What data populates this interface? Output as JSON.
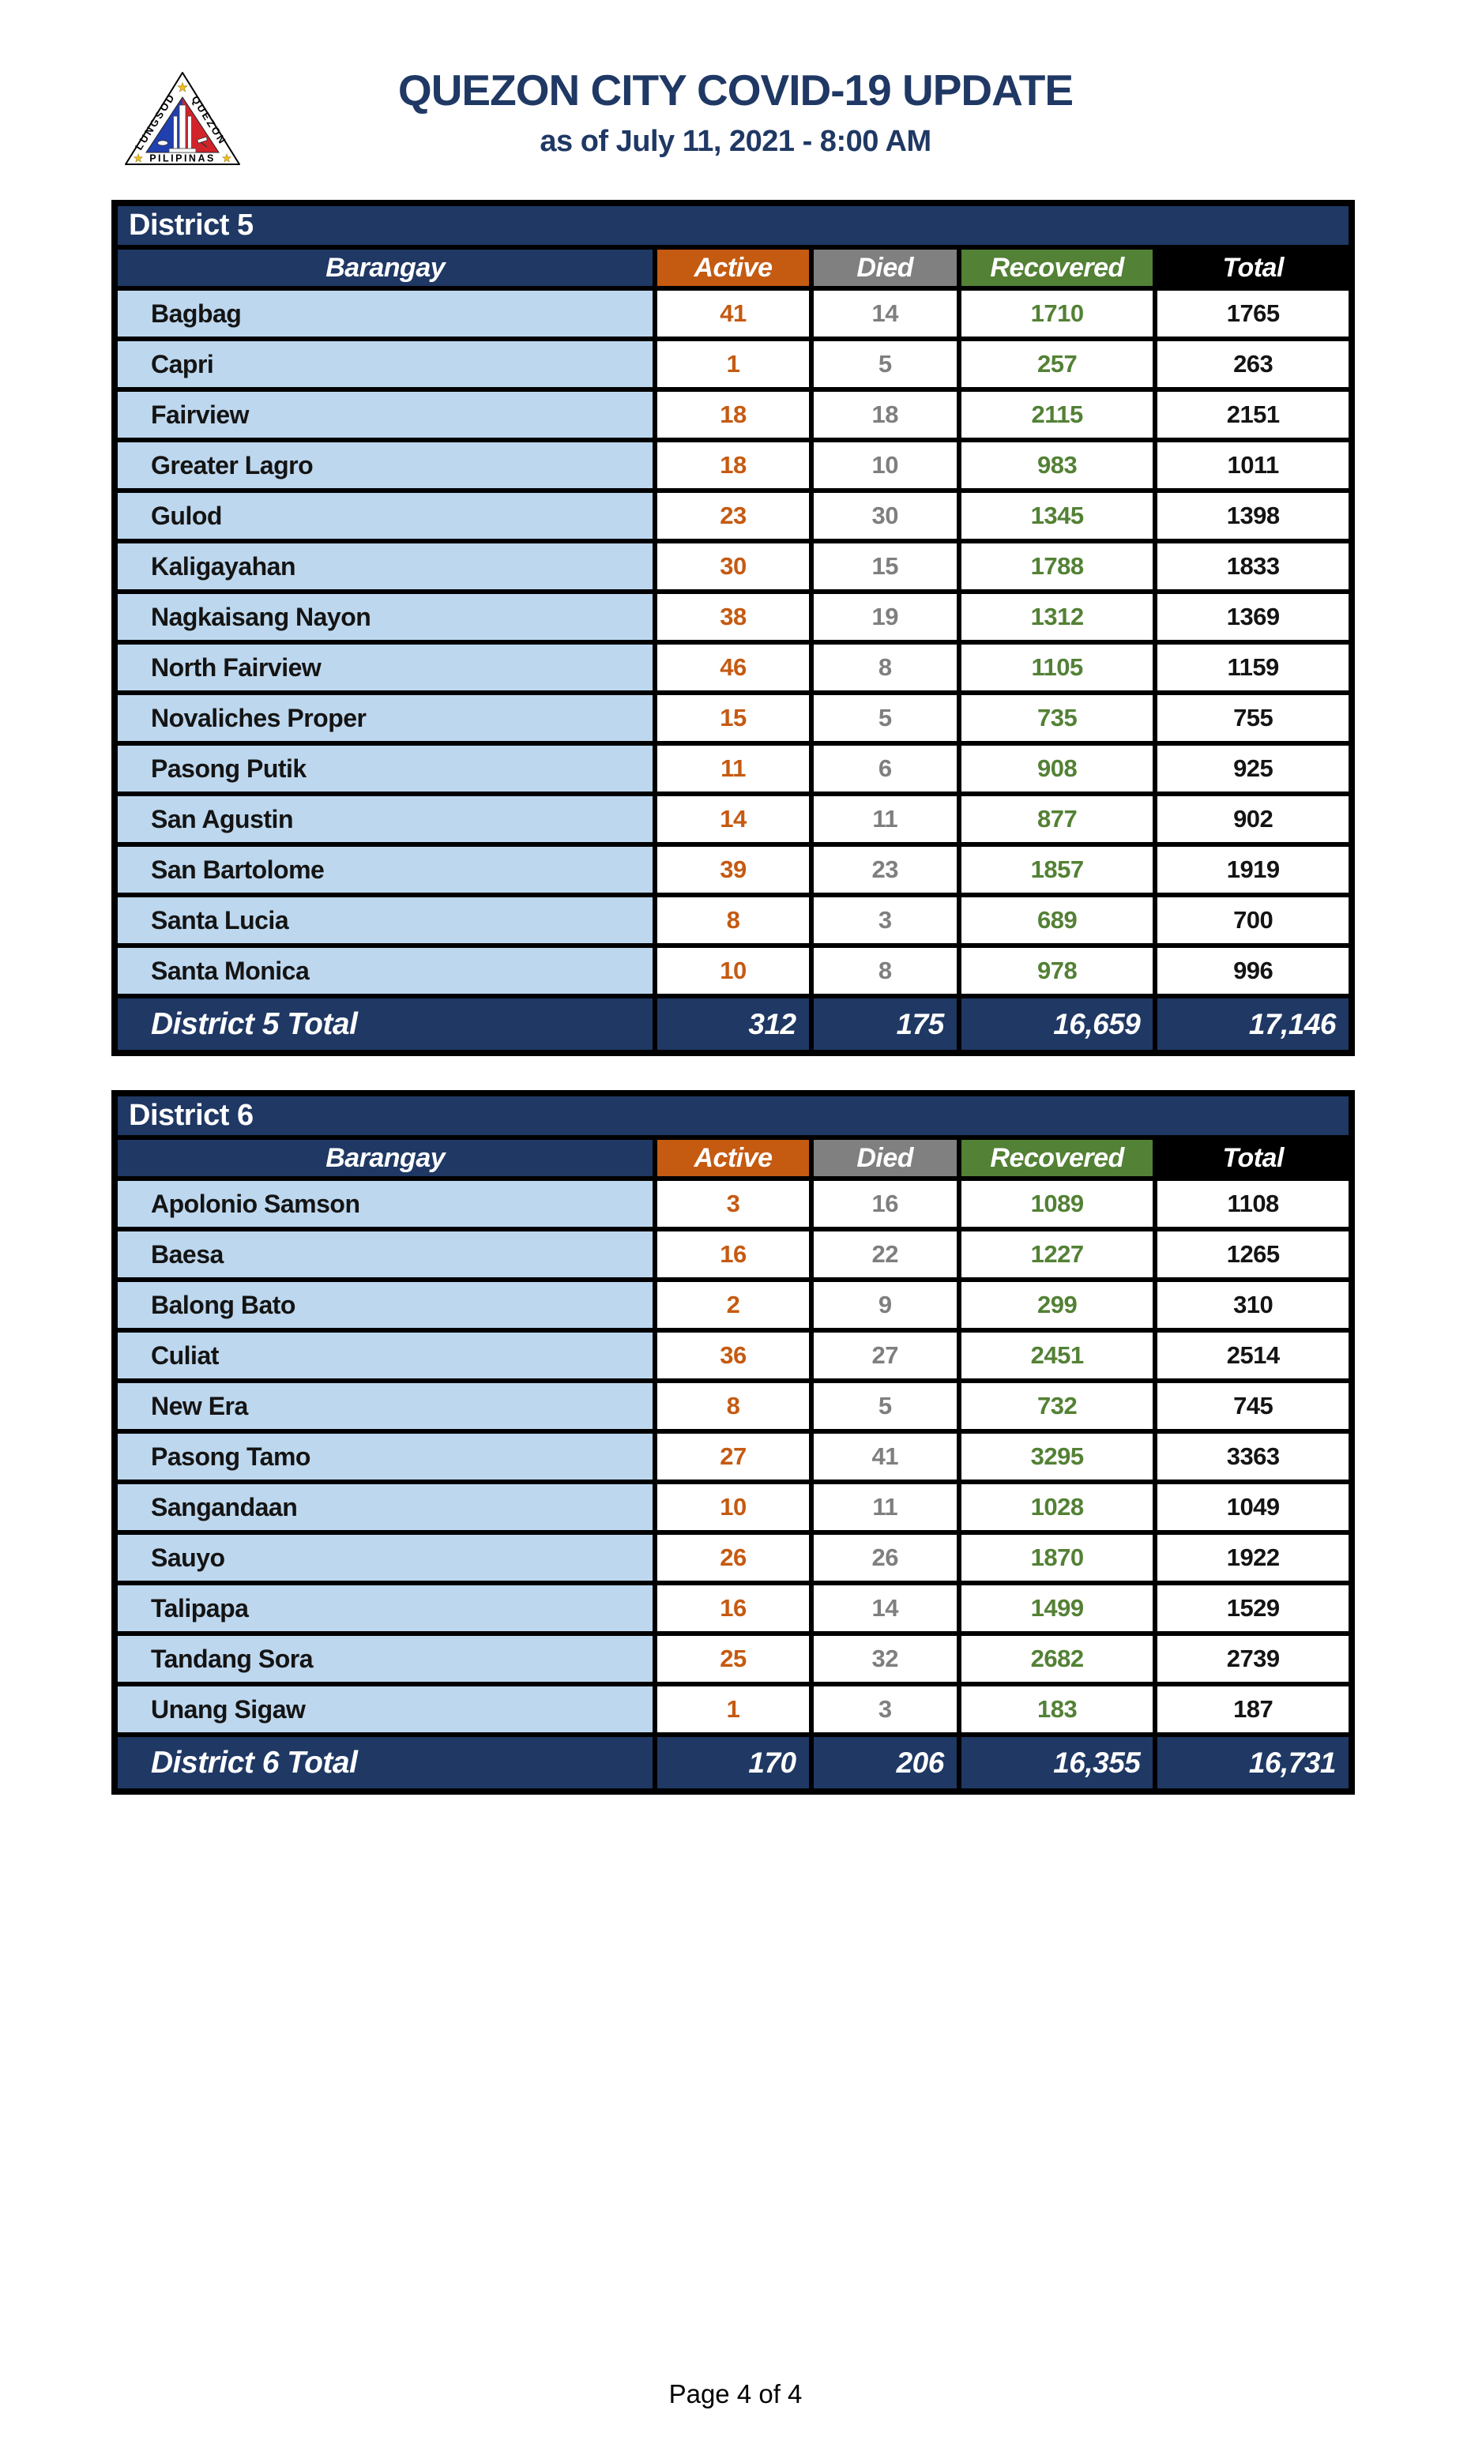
{
  "header": {
    "title": "QUEZON CITY COVID-19 UPDATE",
    "subtitle": "as of July 11, 2021 - 8:00 AM",
    "logo": {
      "side_left_text": "LUNGSOD",
      "side_right_text": "QUEZON",
      "bottom_text": "PILIPINAS"
    }
  },
  "columns": [
    "Barangay",
    "Active",
    "Died",
    "Recovered",
    "Total"
  ],
  "tables": [
    {
      "district": "District 5",
      "rows": [
        {
          "name": "Bagbag",
          "active": "41",
          "died": "14",
          "recovered": "1710",
          "total": "1765"
        },
        {
          "name": "Capri",
          "active": "1",
          "died": "5",
          "recovered": "257",
          "total": "263"
        },
        {
          "name": "Fairview",
          "active": "18",
          "died": "18",
          "recovered": "2115",
          "total": "2151"
        },
        {
          "name": "Greater Lagro",
          "active": "18",
          "died": "10",
          "recovered": "983",
          "total": "1011"
        },
        {
          "name": "Gulod",
          "active": "23",
          "died": "30",
          "recovered": "1345",
          "total": "1398"
        },
        {
          "name": "Kaligayahan",
          "active": "30",
          "died": "15",
          "recovered": "1788",
          "total": "1833"
        },
        {
          "name": "Nagkaisang Nayon",
          "active": "38",
          "died": "19",
          "recovered": "1312",
          "total": "1369"
        },
        {
          "name": "North Fairview",
          "active": "46",
          "died": "8",
          "recovered": "1105",
          "total": "1159"
        },
        {
          "name": "Novaliches Proper",
          "active": "15",
          "died": "5",
          "recovered": "735",
          "total": "755"
        },
        {
          "name": "Pasong Putik",
          "active": "11",
          "died": "6",
          "recovered": "908",
          "total": "925"
        },
        {
          "name": "San Agustin",
          "active": "14",
          "died": "11",
          "recovered": "877",
          "total": "902"
        },
        {
          "name": "San Bartolome",
          "active": "39",
          "died": "23",
          "recovered": "1857",
          "total": "1919"
        },
        {
          "name": "Santa Lucia",
          "active": "8",
          "died": "3",
          "recovered": "689",
          "total": "700"
        },
        {
          "name": "Santa Monica",
          "active": "10",
          "died": "8",
          "recovered": "978",
          "total": "996"
        }
      ],
      "total": {
        "label": "District 5 Total",
        "active": "312",
        "died": "175",
        "recovered": "16,659",
        "total": "17,146"
      }
    },
    {
      "district": "District 6",
      "rows": [
        {
          "name": "Apolonio Samson",
          "active": "3",
          "died": "16",
          "recovered": "1089",
          "total": "1108"
        },
        {
          "name": "Baesa",
          "active": "16",
          "died": "22",
          "recovered": "1227",
          "total": "1265"
        },
        {
          "name": "Balong Bato",
          "active": "2",
          "died": "9",
          "recovered": "299",
          "total": "310"
        },
        {
          "name": "Culiat",
          "active": "36",
          "died": "27",
          "recovered": "2451",
          "total": "2514"
        },
        {
          "name": "New Era",
          "active": "8",
          "died": "5",
          "recovered": "732",
          "total": "745"
        },
        {
          "name": "Pasong Tamo",
          "active": "27",
          "died": "41",
          "recovered": "3295",
          "total": "3363"
        },
        {
          "name": "Sangandaan",
          "active": "10",
          "died": "11",
          "recovered": "1028",
          "total": "1049"
        },
        {
          "name": "Sauyo",
          "active": "26",
          "died": "26",
          "recovered": "1870",
          "total": "1922"
        },
        {
          "name": "Talipapa",
          "active": "16",
          "died": "14",
          "recovered": "1499",
          "total": "1529"
        },
        {
          "name": "Tandang Sora",
          "active": "25",
          "died": "32",
          "recovered": "2682",
          "total": "2739"
        },
        {
          "name": "Unang Sigaw",
          "active": "1",
          "died": "3",
          "recovered": "183",
          "total": "187"
        }
      ],
      "total": {
        "label": "District 6 Total",
        "active": "170",
        "died": "206",
        "recovered": "16,355",
        "total": "16,731"
      }
    }
  ],
  "footer": {
    "page_label": "Page 4 of 4"
  },
  "colors": {
    "navy": "#1F3864",
    "active_orange": "#C55A11",
    "died_gray": "#808080",
    "recovered_green": "#538135",
    "total_black": "#000000",
    "row_light_blue": "#BDD7EE",
    "logo_blue": "#2140AF",
    "logo_red": "#D2232A",
    "logo_star_yellow": "#F2C115"
  }
}
